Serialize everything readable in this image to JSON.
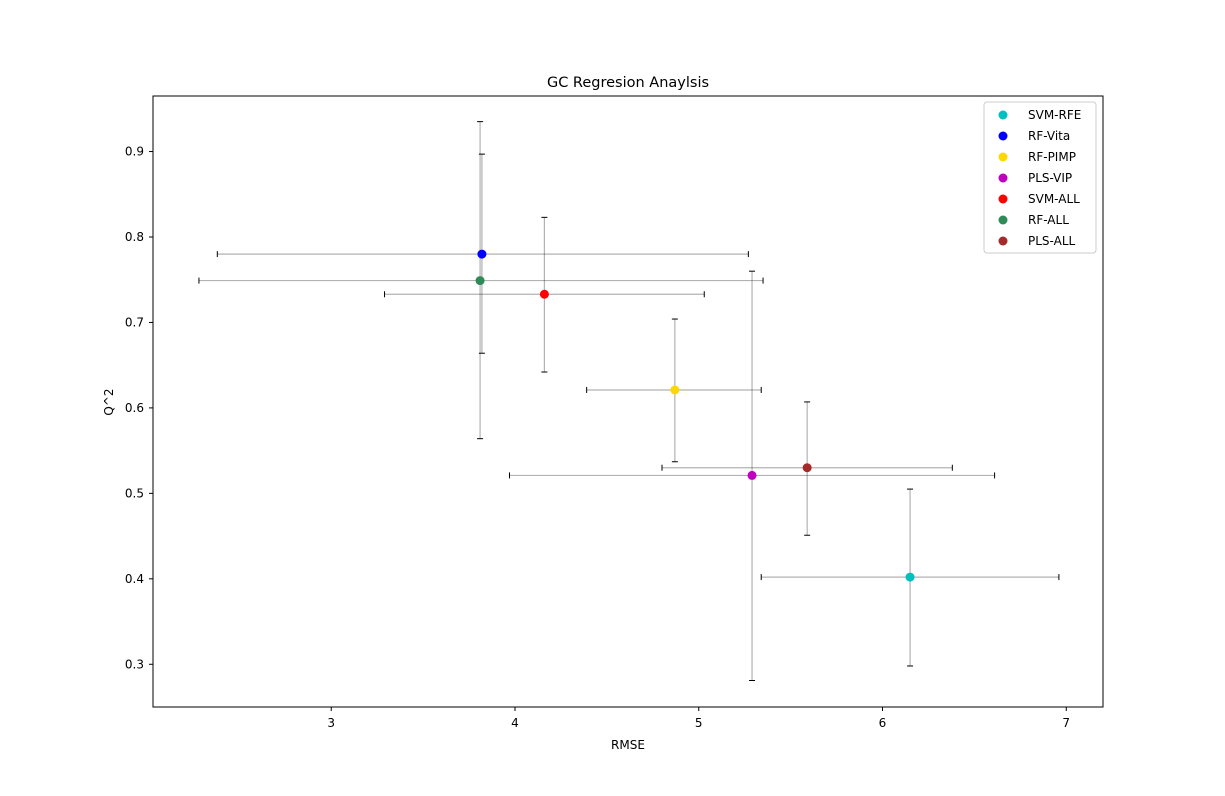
{
  "chart_data": {
    "type": "scatter",
    "title": "GC Regresion Anaylsis",
    "xlabel": "RMSE",
    "ylabel": "Q^2",
    "xlim": [
      2.03,
      7.2
    ],
    "ylim": [
      0.25,
      0.965
    ],
    "xticks": [
      3,
      4,
      5,
      6,
      7
    ],
    "yticks": [
      0.3,
      0.4,
      0.5,
      0.6,
      0.7,
      0.8,
      0.9
    ],
    "grid": false,
    "legend_position": "top-right",
    "series": [
      {
        "name": "SVM-RFE",
        "color": "#00bfbf",
        "x": 6.15,
        "y": 0.402,
        "xerr_low": 5.34,
        "xerr_high": 6.96,
        "yerr_low": 0.298,
        "yerr_high": 0.505
      },
      {
        "name": "RF-Vita",
        "color": "#0000ff",
        "x": 3.82,
        "y": 0.78,
        "xerr_low": 2.38,
        "xerr_high": 5.27,
        "yerr_low": 0.664,
        "yerr_high": 0.897
      },
      {
        "name": "RF-PIMP",
        "color": "#ffd700",
        "x": 4.87,
        "y": 0.621,
        "xerr_low": 4.39,
        "xerr_high": 5.34,
        "yerr_low": 0.537,
        "yerr_high": 0.704
      },
      {
        "name": "PLS-VIP",
        "color": "#bf00bf",
        "x": 5.29,
        "y": 0.521,
        "xerr_low": 3.97,
        "xerr_high": 6.61,
        "yerr_low": 0.281,
        "yerr_high": 0.76
      },
      {
        "name": "SVM-ALL",
        "color": "#ff0000",
        "x": 4.16,
        "y": 0.733,
        "xerr_low": 3.29,
        "xerr_high": 5.03,
        "yerr_low": 0.642,
        "yerr_high": 0.823
      },
      {
        "name": "RF-ALL",
        "color": "#2e8b57",
        "x": 3.81,
        "y": 0.749,
        "xerr_low": 2.28,
        "xerr_high": 5.35,
        "yerr_low": 0.564,
        "yerr_high": 0.935
      },
      {
        "name": "PLS-ALL",
        "color": "#a52a2a",
        "x": 5.59,
        "y": 0.53,
        "xerr_low": 4.8,
        "xerr_high": 6.38,
        "yerr_low": 0.451,
        "yerr_high": 0.607
      }
    ]
  }
}
